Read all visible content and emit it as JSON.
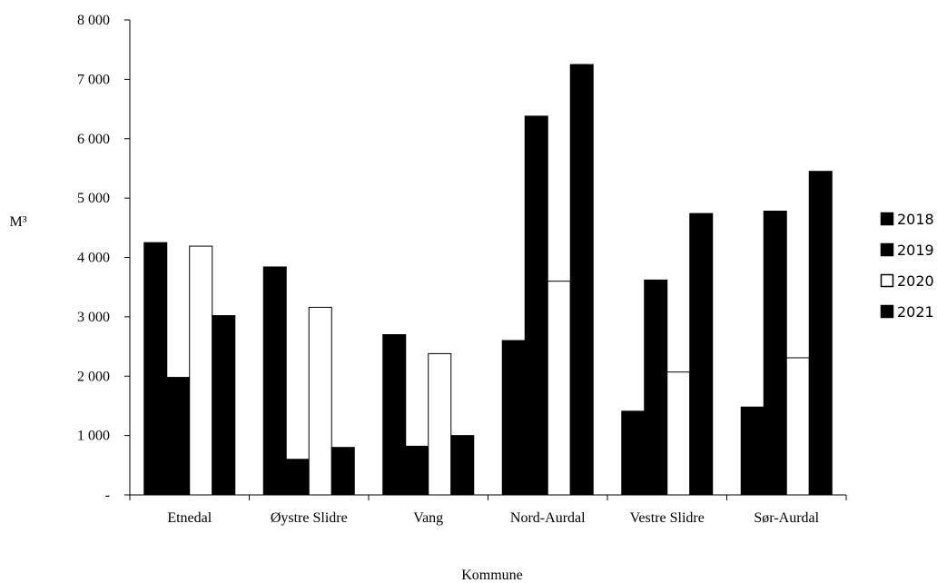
{
  "chart_data": {
    "type": "bar",
    "xlabel": "Kommune",
    "ylabel": "M³",
    "ylim": [
      0,
      8000
    ],
    "yticks": [
      {
        "value": 0,
        "label": "-"
      },
      {
        "value": 1000,
        "label": "1 000"
      },
      {
        "value": 2000,
        "label": "2 000"
      },
      {
        "value": 3000,
        "label": "3 000"
      },
      {
        "value": 4000,
        "label": "4 000"
      },
      {
        "value": 5000,
        "label": "5 000"
      },
      {
        "value": 6000,
        "label": "6 000"
      },
      {
        "value": 7000,
        "label": "7 000"
      },
      {
        "value": 8000,
        "label": "8 000"
      }
    ],
    "categories": [
      "Etnedal",
      "Øystre Slidre",
      "Vang",
      "Nord-Aurdal",
      "Vestre Slidre",
      "Sør-Aurdal"
    ],
    "series": [
      {
        "name": "2018",
        "fill": "#000000",
        "values": [
          4250,
          3840,
          2700,
          2600,
          1410,
          1480
        ]
      },
      {
        "name": "2019",
        "fill": "#000000",
        "values": [
          1980,
          600,
          820,
          6380,
          3620,
          4780
        ]
      },
      {
        "name": "2020",
        "fill": "#ffffff",
        "values": [
          4190,
          3160,
          2380,
          3600,
          2070,
          2310
        ]
      },
      {
        "name": "2021",
        "fill": "#000000",
        "values": [
          3020,
          800,
          1000,
          7250,
          4740,
          5450
        ]
      }
    ],
    "grid": false,
    "legend_position": "right"
  }
}
